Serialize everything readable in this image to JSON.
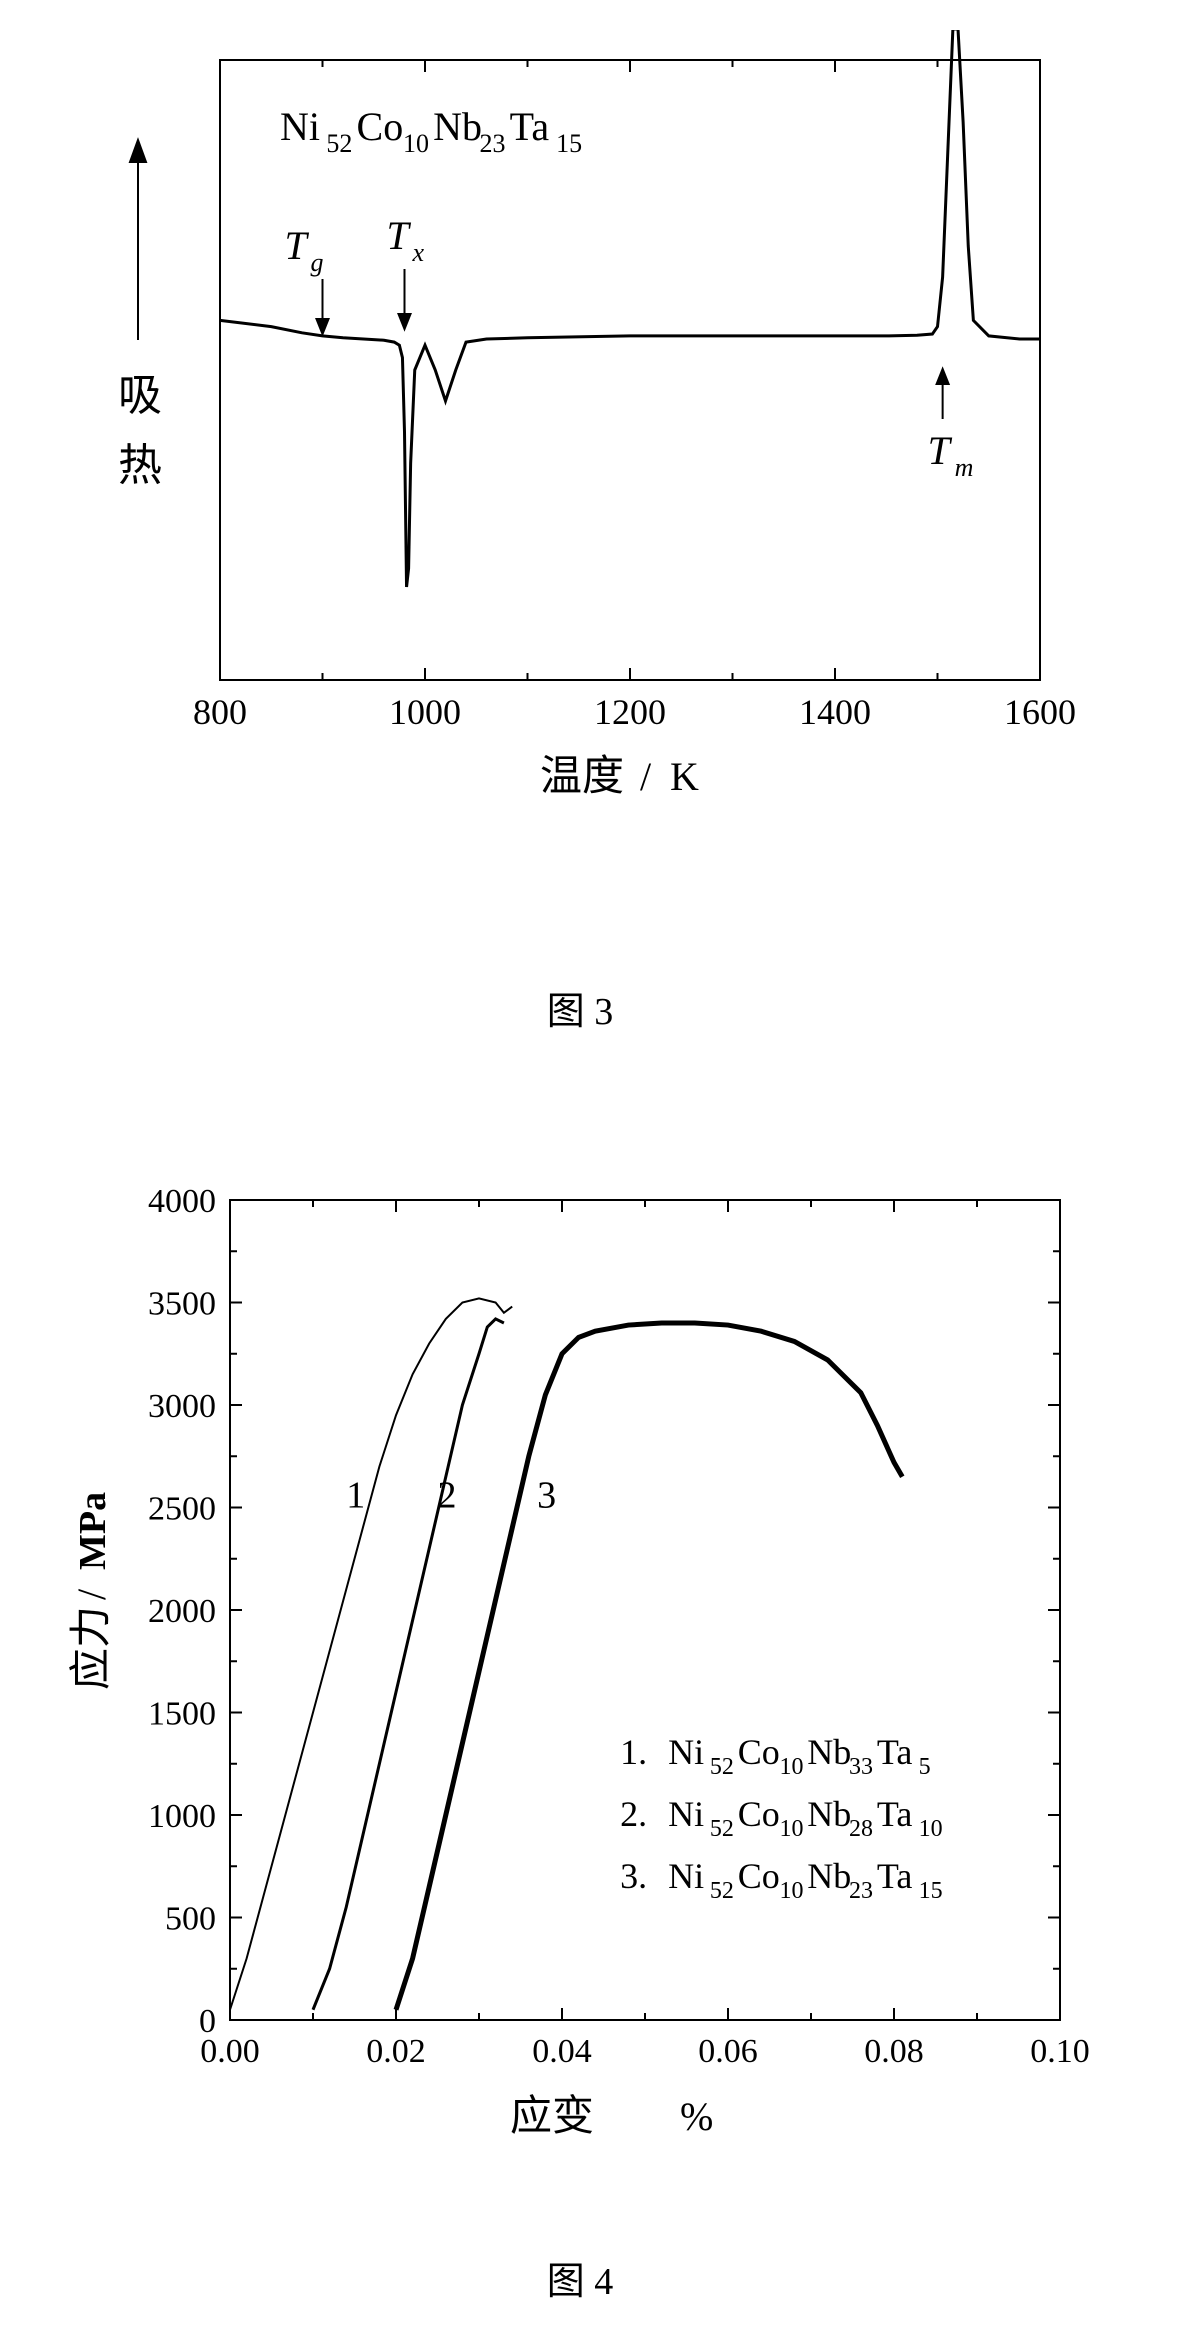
{
  "fig3": {
    "type": "line",
    "composition": {
      "prefix": "Ni",
      "a": "52",
      "mid1": "Co",
      "b": "10",
      "mid2": "Nb",
      "c": "23",
      "mid3": "Ta",
      "d": "15"
    },
    "ylabel_arrow": "→",
    "ylabel_cn_1": "吸",
    "ylabel_cn_2": "热",
    "xlabel_cn": "温度",
    "xlabel_unit": "K",
    "xlim": [
      800,
      1600
    ],
    "xticks": [
      800,
      1000,
      1200,
      1400,
      1600
    ],
    "tick_fontsize": 36,
    "label_fontsize": 40,
    "comp_fontsize": 40,
    "marker_fontsize": 40,
    "line_width": 3,
    "line_color": "#000000",
    "markers": {
      "Tg": {
        "label_base": "T",
        "label_sub": "g",
        "x": 900
      },
      "Tx": {
        "label_base": "T",
        "label_sub": "x",
        "x": 980
      },
      "Tm": {
        "label_base": "T",
        "label_sub": "m",
        "x": 1505
      }
    },
    "baseline_y": 0.55,
    "curve_points": [
      [
        800,
        0.58
      ],
      [
        850,
        0.57
      ],
      [
        880,
        0.56
      ],
      [
        900,
        0.555
      ],
      [
        920,
        0.552
      ],
      [
        940,
        0.55
      ],
      [
        960,
        0.548
      ],
      [
        970,
        0.545
      ],
      [
        975,
        0.54
      ],
      [
        978,
        0.52
      ],
      [
        980,
        0.4
      ],
      [
        982,
        0.15
      ],
      [
        984,
        0.18
      ],
      [
        986,
        0.35
      ],
      [
        990,
        0.5
      ],
      [
        1000,
        0.54
      ],
      [
        1010,
        0.5
      ],
      [
        1020,
        0.45
      ],
      [
        1030,
        0.5
      ],
      [
        1040,
        0.545
      ],
      [
        1060,
        0.55
      ],
      [
        1100,
        0.552
      ],
      [
        1200,
        0.555
      ],
      [
        1300,
        0.555
      ],
      [
        1400,
        0.555
      ],
      [
        1450,
        0.555
      ],
      [
        1480,
        0.556
      ],
      [
        1495,
        0.558
      ],
      [
        1500,
        0.57
      ],
      [
        1505,
        0.65
      ],
      [
        1510,
        0.85
      ],
      [
        1515,
        1.05
      ],
      [
        1520,
        1.05
      ],
      [
        1525,
        0.9
      ],
      [
        1530,
        0.7
      ],
      [
        1535,
        0.58
      ],
      [
        1550,
        0.555
      ],
      [
        1580,
        0.55
      ],
      [
        1600,
        0.55
      ]
    ],
    "caption": "图 3"
  },
  "fig4": {
    "type": "line",
    "ylabel_cn": "应力",
    "ylabel_unit": "MPa",
    "xlabel_cn": "应变",
    "xlabel_unit": "%",
    "xlim": [
      0.0,
      0.1
    ],
    "ylim": [
      0,
      4000
    ],
    "xticks": [
      "0.00",
      "0.02",
      "0.04",
      "0.06",
      "0.08",
      "0.10"
    ],
    "xtick_vals": [
      0.0,
      0.02,
      0.04,
      0.06,
      0.08,
      0.1
    ],
    "yticks": [
      0,
      500,
      1000,
      1500,
      2000,
      2500,
      3000,
      3500,
      4000
    ],
    "tick_fontsize": 34,
    "label_fontsize": 38,
    "line_width_1": 2,
    "line_width_2": 3,
    "line_width_3": 5,
    "line_color_1": "#555555",
    "line_color_2": "#000000",
    "line_color_3": "#000000",
    "curve1_label": "1",
    "curve2_label": "2",
    "curve3_label": "3",
    "legend": {
      "item1": {
        "num": "1.",
        "parts": [
          "Ni",
          "52",
          "Co",
          "10",
          "Nb",
          "33",
          "Ta",
          "5"
        ]
      },
      "item2": {
        "num": "2.",
        "parts": [
          "Ni",
          "52",
          "Co",
          "10",
          "Nb",
          "28",
          "Ta",
          "10"
        ]
      },
      "item3": {
        "num": "3.",
        "parts": [
          "Ni",
          "52",
          "Co",
          "10",
          "Nb",
          "23",
          "Ta",
          "15"
        ]
      }
    },
    "curve1": [
      [
        0.0,
        50
      ],
      [
        0.002,
        300
      ],
      [
        0.004,
        600
      ],
      [
        0.006,
        900
      ],
      [
        0.008,
        1200
      ],
      [
        0.01,
        1500
      ],
      [
        0.012,
        1800
      ],
      [
        0.014,
        2100
      ],
      [
        0.016,
        2400
      ],
      [
        0.018,
        2700
      ],
      [
        0.02,
        2950
      ],
      [
        0.022,
        3150
      ],
      [
        0.024,
        3300
      ],
      [
        0.026,
        3420
      ],
      [
        0.028,
        3500
      ],
      [
        0.03,
        3520
      ],
      [
        0.032,
        3500
      ],
      [
        0.033,
        3450
      ],
      [
        0.034,
        3480
      ]
    ],
    "curve2": [
      [
        0.01,
        50
      ],
      [
        0.012,
        250
      ],
      [
        0.014,
        550
      ],
      [
        0.016,
        900
      ],
      [
        0.018,
        1250
      ],
      [
        0.02,
        1600
      ],
      [
        0.022,
        1950
      ],
      [
        0.024,
        2300
      ],
      [
        0.026,
        2650
      ],
      [
        0.028,
        3000
      ],
      [
        0.03,
        3250
      ],
      [
        0.031,
        3380
      ],
      [
        0.032,
        3420
      ],
      [
        0.033,
        3400
      ]
    ],
    "curve3": [
      [
        0.02,
        50
      ],
      [
        0.022,
        300
      ],
      [
        0.024,
        650
      ],
      [
        0.026,
        1000
      ],
      [
        0.028,
        1350
      ],
      [
        0.03,
        1700
      ],
      [
        0.032,
        2050
      ],
      [
        0.034,
        2400
      ],
      [
        0.036,
        2750
      ],
      [
        0.038,
        3050
      ],
      [
        0.04,
        3250
      ],
      [
        0.042,
        3330
      ],
      [
        0.044,
        3360
      ],
      [
        0.048,
        3390
      ],
      [
        0.052,
        3400
      ],
      [
        0.056,
        3400
      ],
      [
        0.06,
        3390
      ],
      [
        0.064,
        3360
      ],
      [
        0.068,
        3310
      ],
      [
        0.072,
        3220
      ],
      [
        0.076,
        3060
      ],
      [
        0.078,
        2900
      ],
      [
        0.08,
        2720
      ],
      [
        0.081,
        2650
      ]
    ],
    "caption": "图 4"
  }
}
